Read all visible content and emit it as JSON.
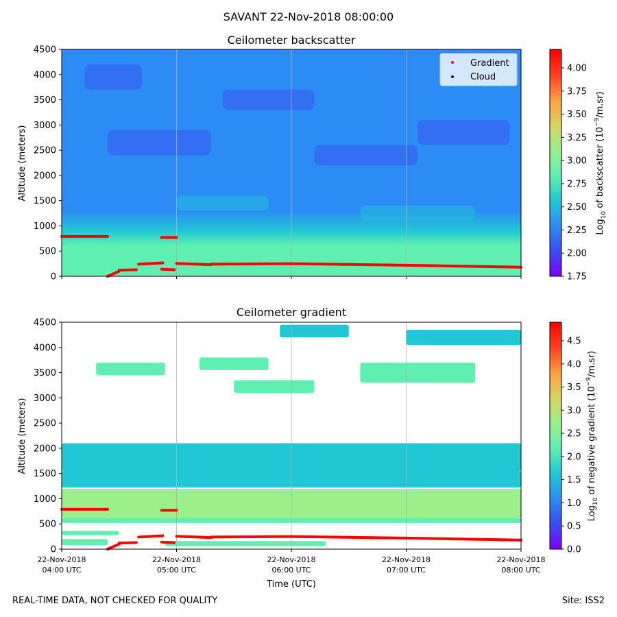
{
  "figure": {
    "suptitle": "SAVANT 22-Nov-2018 08:00:00",
    "footer_left": "REAL-TIME DATA, NOT CHECKED FOR QUALITY",
    "footer_right": "Site: ISS2"
  },
  "colors": {
    "gradient_marker": "#ff0000",
    "cloud_marker": "#000000",
    "colormap": [
      "#7f00ff",
      "#3a4cf0",
      "#2c8cf5",
      "#21c8d4",
      "#5ef0b0",
      "#9bf08c",
      "#d6d460",
      "#ffa040",
      "#ff4020",
      "#ff0000"
    ]
  },
  "chart_data": [
    {
      "type": "heatmap",
      "title": "Ceilometer backscatter",
      "xlabel": "",
      "ylabel": "Altitude (meters)",
      "ylim": [
        0,
        4500
      ],
      "yticks": [
        "0",
        "500",
        "1000",
        "1500",
        "2000",
        "2500",
        "3000",
        "3500",
        "4000",
        "4500"
      ],
      "xlim_hours": [
        4,
        8
      ],
      "colorbar": {
        "label_prefix": "Log",
        "label_sub": "10",
        "label_mid": " of backscatter (10",
        "label_sup": "−9",
        "label_suffix": "/m.sr)",
        "range": [
          1.75,
          4.2
        ],
        "ticks": [
          "1.75",
          "2.00",
          "2.25",
          "2.50",
          "2.75",
          "3.00",
          "3.25",
          "3.50",
          "3.75",
          "4.00"
        ]
      },
      "field_profile": [
        {
          "alt": 0,
          "value": 2.9
        },
        {
          "alt": 300,
          "value": 2.85
        },
        {
          "alt": 600,
          "value": 2.8
        },
        {
          "alt": 900,
          "value": 2.55
        },
        {
          "alt": 1300,
          "value": 2.4
        },
        {
          "alt": 1800,
          "value": 2.25
        },
        {
          "alt": 2500,
          "value": 2.2
        },
        {
          "alt": 3500,
          "value": 2.3
        },
        {
          "alt": 4500,
          "value": 2.35
        }
      ],
      "legend": {
        "placement": "top-right",
        "entries": [
          {
            "label": "Gradient",
            "color": "#ff0000"
          },
          {
            "label": "Cloud",
            "color": "#000000"
          }
        ]
      }
    },
    {
      "type": "heatmap",
      "title": "Ceilometer gradient",
      "xlabel": "Time (UTC)",
      "ylabel": "Altitude (meters)",
      "ylim": [
        0,
        4500
      ],
      "yticks": [
        "0",
        "500",
        "1000",
        "1500",
        "2000",
        "2500",
        "3000",
        "3500",
        "4000",
        "4500"
      ],
      "xlim_hours": [
        4,
        8
      ],
      "xticks": [
        {
          "hour": 4,
          "date": "22-Nov-2018",
          "time": "04:00 UTC"
        },
        {
          "hour": 5,
          "date": "22-Nov-2018",
          "time": "05:00 UTC"
        },
        {
          "hour": 6,
          "date": "22-Nov-2018",
          "time": "06:00 UTC"
        },
        {
          "hour": 7,
          "date": "22-Nov-2018",
          "time": "07:00 UTC"
        },
        {
          "hour": 8,
          "date": "22-Nov-2018",
          "time": "08:00 UTC"
        }
      ],
      "colorbar": {
        "label_prefix": "Log",
        "label_sub": "10",
        "label_mid": " of negative gradient (10",
        "label_sup": "−9",
        "label_suffix": "/m.sr)",
        "range": [
          0,
          4.9
        ],
        "ticks": [
          "0.0",
          "0.5",
          "1.0",
          "1.5",
          "2.0",
          "2.5",
          "3.0",
          "3.5",
          "4.0",
          "4.5"
        ]
      },
      "filled_regions": [
        {
          "t0": 4.0,
          "t1": 8.0,
          "a0": 520,
          "a1": 620,
          "value": 2.1
        },
        {
          "t0": 4.0,
          "t1": 8.0,
          "a0": 620,
          "a1": 1200,
          "value": 2.6
        },
        {
          "t0": 4.0,
          "t1": 8.0,
          "a0": 1220,
          "a1": 1550,
          "value": 1.6
        },
        {
          "t0": 4.0,
          "t1": 8.0,
          "a0": 1550,
          "a1": 2100,
          "value": 1.4
        },
        {
          "t0": 4.0,
          "t1": 4.4,
          "a0": 80,
          "a1": 200,
          "value": 2.3
        },
        {
          "t0": 4.0,
          "t1": 4.5,
          "a0": 280,
          "a1": 360,
          "value": 2.2
        },
        {
          "t0": 4.9,
          "t1": 6.3,
          "a0": 60,
          "a1": 160,
          "value": 2.3
        },
        {
          "t0": 5.2,
          "t1": 5.8,
          "a0": 3550,
          "a1": 3800,
          "value": 2.0
        },
        {
          "t0": 5.5,
          "t1": 6.2,
          "a0": 3100,
          "a1": 3350,
          "value": 2.2
        },
        {
          "t0": 6.6,
          "t1": 7.6,
          "a0": 3300,
          "a1": 3700,
          "value": 2.1
        },
        {
          "t0": 7.0,
          "t1": 8.0,
          "a0": 4050,
          "a1": 4350,
          "value": 1.9
        },
        {
          "t0": 4.3,
          "t1": 4.9,
          "a0": 3450,
          "a1": 3700,
          "value": 2.3
        },
        {
          "t0": 5.9,
          "t1": 6.5,
          "a0": 4200,
          "a1": 4450,
          "value": 1.8
        }
      ]
    }
  ],
  "gradient_points": [
    {
      "t0": 4.0,
      "t1": 4.4,
      "a0": 790,
      "a1": 790
    },
    {
      "t0": 4.4,
      "t1": 4.5,
      "a0": 0,
      "a1": 100
    },
    {
      "t0": 4.5,
      "t1": 4.65,
      "a0": 120,
      "a1": 130
    },
    {
      "t0": 4.67,
      "t1": 4.88,
      "a0": 240,
      "a1": 265
    },
    {
      "t0": 4.87,
      "t1": 5.0,
      "a0": 770,
      "a1": 770
    },
    {
      "t0": 4.87,
      "t1": 4.98,
      "a0": 140,
      "a1": 130
    },
    {
      "t0": 5.0,
      "t1": 5.3,
      "a0": 255,
      "a1": 230
    },
    {
      "t0": 5.3,
      "t1": 6.0,
      "a0": 240,
      "a1": 250
    },
    {
      "t0": 6.0,
      "t1": 7.0,
      "a0": 250,
      "a1": 220
    },
    {
      "t0": 7.0,
      "t1": 8.0,
      "a0": 220,
      "a1": 180
    }
  ]
}
